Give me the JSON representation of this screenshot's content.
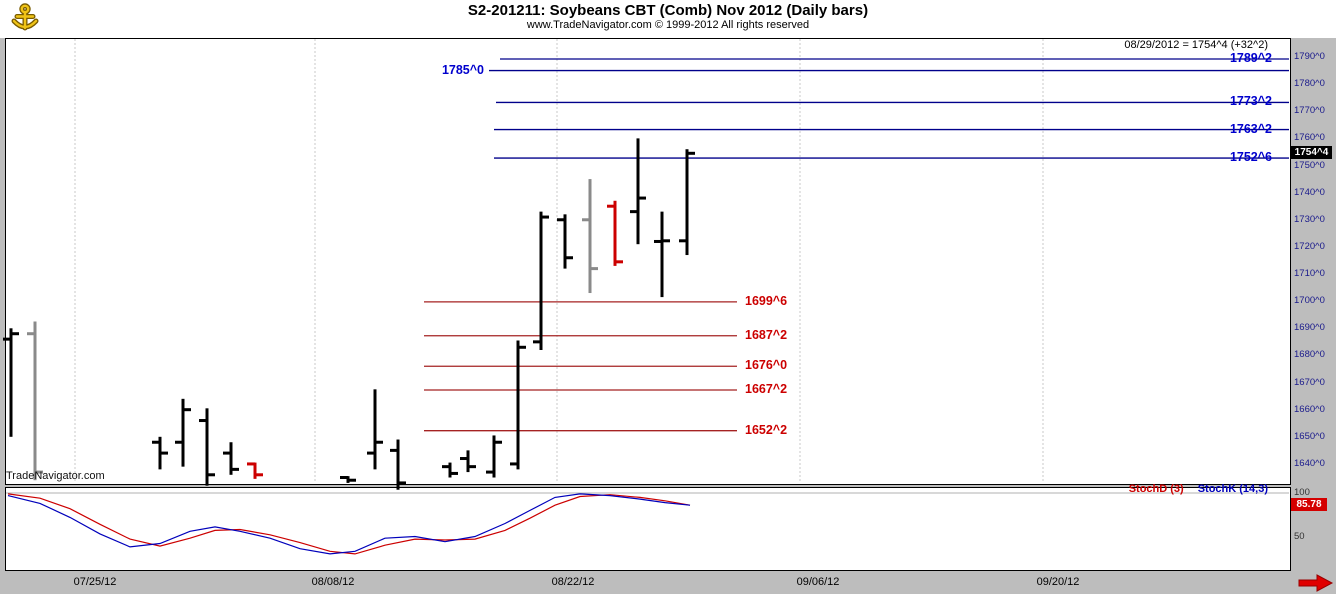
{
  "header": {
    "title": "S2-201211:  Soybeans CBT (Comb) Nov 2012  (Daily bars)",
    "subtitle": "www.TradeNavigator.com © 1999-2012 All rights reserved",
    "annotation": "08/29/2012 = 1754^4 (+32^2)"
  },
  "watermark": "TradeNavigator.com",
  "icons": {
    "top_left": "anchor-icon",
    "bottom_right": "scroll-right-arrow-icon"
  },
  "colors": {
    "background": "#bdbdbd",
    "panel_bg": "#ffffff",
    "resistance_line": "#00008b",
    "resistance_label": "#0000cd",
    "support_line": "#a52222",
    "support_label": "#cc0000",
    "bar_black": "#000000",
    "bar_gray": "#8a8a8a",
    "bar_red": "#cc0000",
    "stoch_k": "#0000bb",
    "stoch_d": "#cc0000",
    "axis_text": "#1a1a8c",
    "price_badge_bg": "#000000",
    "stoch_badge_bg": "#d40000"
  },
  "price_axis": {
    "ticks": [
      "1790^0",
      "1780^0",
      "1770^0",
      "1760^0",
      "1750^0",
      "1740^0",
      "1730^0",
      "1720^0",
      "1710^0",
      "1700^0",
      "1690^0",
      "1680^0",
      "1670^0",
      "1660^0",
      "1650^0",
      "1640^0"
    ],
    "current_price_badge": "1754^4"
  },
  "stochastic": {
    "stochd_label": "StochD (3)",
    "stochk_label": "StochK (14,3)",
    "ticks": [
      "100",
      "50"
    ],
    "value_badge": "85.78"
  },
  "x_axis": {
    "dates": [
      {
        "label": "07/25/12",
        "x": 95
      },
      {
        "label": "08/08/12",
        "x": 333
      },
      {
        "label": "08/22/12",
        "x": 573
      },
      {
        "label": "09/06/12",
        "x": 818
      },
      {
        "label": "09/20/12",
        "x": 1058
      }
    ],
    "gridlines_x": [
      75,
      315,
      557,
      800,
      1043
    ]
  },
  "chart_data": [
    {
      "type": "ohlc",
      "name": "price",
      "title": "Soybeans CBT (Comb) Nov 2012 Daily bars",
      "ylim": [
        1632,
        1797
      ],
      "y_ticks": [
        "1790^0",
        "1780^0",
        "1770^0",
        "1760^0",
        "1750^0",
        "1740^0",
        "1730^0",
        "1720^0",
        "1710^0",
        "1700^0",
        "1690^0",
        "1680^0",
        "1670^0",
        "1660^0",
        "1650^0",
        "1640^0"
      ],
      "last_bar": {
        "date": "08/29/2012",
        "close": 1754.5,
        "change": 32.25
      },
      "bars": [
        {
          "x": 11,
          "open": 1686.0,
          "high": 1690.0,
          "low": 1650.0,
          "close": 1688.0,
          "color": "black"
        },
        {
          "x": 35,
          "open": 1688.0,
          "high": 1692.5,
          "low": 1634.0,
          "close": 1637.0,
          "color": "gray"
        },
        {
          "x": 160,
          "open": 1648.0,
          "high": 1650.0,
          "low": 1638.0,
          "close": 1644.0,
          "color": "black"
        },
        {
          "x": 183,
          "open": 1648.0,
          "high": 1664.0,
          "low": 1639.0,
          "close": 1660.0,
          "color": "black"
        },
        {
          "x": 207,
          "open": 1656.0,
          "high": 1660.5,
          "low": 1632.0,
          "close": 1636.0,
          "color": "black"
        },
        {
          "x": 231,
          "open": 1644.0,
          "high": 1648.0,
          "low": 1636.0,
          "close": 1638.0,
          "color": "black"
        },
        {
          "x": 255,
          "open": 1640.0,
          "high": 1640.5,
          "low": 1634.5,
          "close": 1636.0,
          "color": "red"
        },
        {
          "x": 348,
          "open": 1635.0,
          "high": 1635.5,
          "low": 1633.0,
          "close": 1634.0,
          "color": "black"
        },
        {
          "x": 375,
          "open": 1644.0,
          "high": 1667.5,
          "low": 1638.0,
          "close": 1648.0,
          "color": "black"
        },
        {
          "x": 398,
          "open": 1645.0,
          "high": 1649.0,
          "low": 1630.5,
          "close": 1633.0,
          "color": "black"
        },
        {
          "x": 450,
          "open": 1639.0,
          "high": 1640.5,
          "low": 1635.0,
          "close": 1636.5,
          "color": "black"
        },
        {
          "x": 468,
          "open": 1642.0,
          "high": 1645.0,
          "low": 1637.0,
          "close": 1639.0,
          "color": "black"
        },
        {
          "x": 494,
          "open": 1637.0,
          "high": 1650.5,
          "low": 1635.0,
          "close": 1648.0,
          "color": "black"
        },
        {
          "x": 518,
          "open": 1640.0,
          "high": 1685.5,
          "low": 1638.0,
          "close": 1683.0,
          "color": "black"
        },
        {
          "x": 541,
          "open": 1685.0,
          "high": 1733.0,
          "low": 1682.0,
          "close": 1731.0,
          "color": "black"
        },
        {
          "x": 565,
          "open": 1730.0,
          "high": 1732.0,
          "low": 1712.0,
          "close": 1716.0,
          "color": "black"
        },
        {
          "x": 590,
          "open": 1730.0,
          "high": 1745.0,
          "low": 1703.0,
          "close": 1712.0,
          "color": "gray"
        },
        {
          "x": 615,
          "open": 1735.0,
          "high": 1737.0,
          "low": 1713.0,
          "close": 1714.5,
          "color": "red"
        },
        {
          "x": 638,
          "open": 1733.0,
          "high": 1760.0,
          "low": 1721.0,
          "close": 1738.0,
          "color": "black"
        },
        {
          "x": 662,
          "open": 1722.0,
          "high": 1733.0,
          "low": 1701.5,
          "close": 1722.25,
          "color": "black"
        },
        {
          "x": 687,
          "open": 1722.25,
          "high": 1756.0,
          "low": 1717.0,
          "close": 1754.5,
          "color": "black"
        }
      ],
      "resistance_lines": [
        {
          "label": "1789^2",
          "value": 1789.25,
          "x_start": 500,
          "label_side": "right"
        },
        {
          "label": "1785^0",
          "value": 1785.0,
          "x_start": 489,
          "label_side": "left"
        },
        {
          "label": "1773^2",
          "value": 1773.25,
          "x_start": 496,
          "label_side": "right"
        },
        {
          "label": "1763^2",
          "value": 1763.25,
          "x_start": 494,
          "label_side": "right"
        },
        {
          "label": "1752^6",
          "value": 1752.75,
          "x_start": 494,
          "label_side": "right"
        }
      ],
      "support_lines": [
        {
          "label": "1699^6",
          "value": 1699.75,
          "x_start": 424,
          "x_end": 737
        },
        {
          "label": "1687^2",
          "value": 1687.25,
          "x_start": 424,
          "x_end": 737
        },
        {
          "label": "1676^0",
          "value": 1676.0,
          "x_start": 424,
          "x_end": 737
        },
        {
          "label": "1667^2",
          "value": 1667.25,
          "x_start": 424,
          "x_end": 737
        },
        {
          "label": "1652^2",
          "value": 1652.25,
          "x_start": 424,
          "x_end": 737
        }
      ]
    },
    {
      "type": "line",
      "name": "stochastic",
      "ylim": [
        0,
        100
      ],
      "y_ticks": [
        "100",
        "50"
      ],
      "level_lines": [
        100
      ],
      "last_value": 85.78,
      "series": [
        {
          "name": "StochD (3)",
          "color_key": "stoch_d",
          "points": [
            [
              8,
              99
            ],
            [
              40,
              94
            ],
            [
              70,
              82
            ],
            [
              100,
              64
            ],
            [
              130,
              47
            ],
            [
              160,
              39
            ],
            [
              190,
              48
            ],
            [
              215,
              57
            ],
            [
              240,
              58
            ],
            [
              270,
              52
            ],
            [
              300,
              43
            ],
            [
              330,
              33
            ],
            [
              355,
              30
            ],
            [
              385,
              40
            ],
            [
              415,
              47
            ],
            [
              445,
              46
            ],
            [
              475,
              47
            ],
            [
              505,
              57
            ],
            [
              530,
              71
            ],
            [
              555,
              86
            ],
            [
              580,
              96
            ],
            [
              610,
              98
            ],
            [
              640,
              95
            ],
            [
              665,
              91
            ],
            [
              690,
              86
            ]
          ]
        },
        {
          "name": "StochK (14,3)",
          "color_key": "stoch_k",
          "points": [
            [
              8,
              97
            ],
            [
              40,
              88
            ],
            [
              70,
              72
            ],
            [
              100,
              53
            ],
            [
              130,
              38
            ],
            [
              160,
              42
            ],
            [
              190,
              56
            ],
            [
              215,
              61
            ],
            [
              240,
              56
            ],
            [
              270,
              48
            ],
            [
              300,
              36
            ],
            [
              330,
              30
            ],
            [
              355,
              33
            ],
            [
              385,
              48
            ],
            [
              415,
              50
            ],
            [
              445,
              44
            ],
            [
              475,
              50
            ],
            [
              505,
              65
            ],
            [
              530,
              80
            ],
            [
              555,
              95
            ],
            [
              580,
              99
            ],
            [
              610,
              97
            ],
            [
              640,
              93
            ],
            [
              665,
              89
            ],
            [
              690,
              86
            ]
          ]
        }
      ]
    }
  ]
}
